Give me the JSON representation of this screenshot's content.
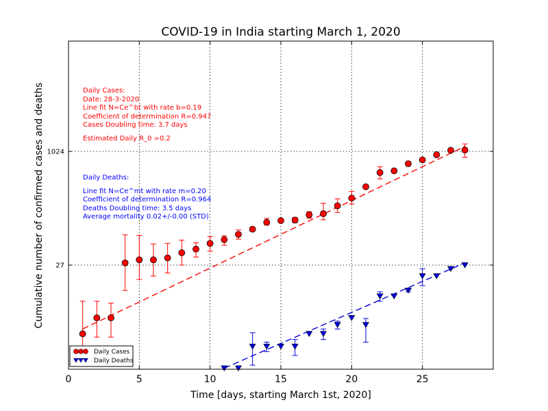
{
  "chart_data": {
    "type": "scatter",
    "title": "COVID-19 in India starting March 1, 2020",
    "xlabel": "Time [days, starting March 1st, 2020]",
    "ylabel": "Cumulative number of confirmed cases and deaths",
    "xlim": [
      0,
      30
    ],
    "x_ticks": [
      "0",
      "5",
      "10",
      "15",
      "20",
      "25"
    ],
    "y_scale": "log",
    "y_ticks": [
      "27",
      "1024"
    ],
    "grid": true,
    "legend_position": "bottom-left",
    "series": [
      {
        "name": "Daily Cases",
        "color": "#ff0000",
        "marker": "circle",
        "x": [
          1,
          2,
          3,
          4,
          5,
          6,
          7,
          8,
          9,
          10,
          11,
          12,
          13,
          14,
          15,
          16,
          17,
          18,
          19,
          20,
          21,
          22,
          23,
          24,
          25,
          26,
          27,
          28
        ],
        "y": [
          3,
          5,
          5,
          29,
          32,
          32,
          34,
          40,
          45,
          54,
          61,
          72,
          85,
          106,
          112,
          114,
          135,
          140,
          180,
          230,
          330,
          520,
          550,
          690,
          780,
          920,
          1060,
          1070
        ],
        "err_low": [
          1.6,
          2.3,
          2.3,
          17,
          15,
          13,
          13,
          13,
          10,
          12,
          10,
          10,
          5,
          9,
          5,
          10,
          14,
          25,
          35,
          40,
          5,
          95,
          30,
          20,
          20,
          10,
          10,
          220
        ],
        "err_high": [
          5.5,
          3.5,
          3,
          42,
          38,
          21,
          20,
          20,
          10,
          13,
          8,
          11,
          3,
          14,
          5,
          10,
          14,
          55,
          45,
          55,
          5,
          105,
          30,
          20,
          20,
          10,
          10,
          230
        ]
      },
      {
        "name": "Daily Deaths",
        "color": "#0000dd",
        "marker": "triangle-down",
        "x": [
          11,
          12,
          13,
          14,
          15,
          16,
          17,
          18,
          19,
          20,
          21,
          22,
          23,
          24,
          25,
          26,
          27,
          28
        ],
        "y": [
          1,
          1,
          2,
          2,
          2,
          2,
          3,
          3,
          4,
          5,
          4,
          10,
          10,
          12,
          19,
          19,
          24,
          27
        ],
        "err_low": [
          0,
          0,
          0.9,
          0.3,
          0,
          0.5,
          0,
          0.5,
          0.5,
          0,
          1.7,
          1.5,
          0,
          0.5,
          5,
          0,
          0,
          0
        ],
        "err_high": [
          0,
          0,
          1.1,
          0.3,
          0,
          0.5,
          0,
          0.5,
          0.5,
          0,
          0.9,
          1.5,
          0,
          0.5,
          5,
          0,
          0,
          0
        ]
      }
    ],
    "fit_lines": [
      {
        "series": "Daily Cases",
        "color": "#ff0000",
        "x": [
          1,
          28
        ],
        "y": [
          3.5,
          1200
        ]
      },
      {
        "series": "Daily Deaths",
        "color": "#0000dd",
        "x": [
          11,
          28
        ],
        "y": [
          1,
          29
        ]
      }
    ],
    "annotations": {
      "cases": {
        "heading": "Daily Cases:",
        "date": "Date: 28-3-2020",
        "fit": "Line fit N=Ce^bt with rate b=0.19",
        "r2": "Coefficient of determination R=0.947",
        "doubling": "Cases Doubling time: 3.7 days",
        "r0": "Estimated Daily R_0 =0.2"
      },
      "deaths": {
        "heading": "Daily Deaths:",
        "fit": "Line fit N=Ce^mt with rate m=0.20",
        "r2": "Coefficient of determination R=0.964",
        "doubling": "Deaths Doubling time: 3.5 days",
        "mortality": "Average mortality 0.02+/-0.00 (STD)"
      }
    },
    "legend": [
      "Daily Cases",
      "Daily Deaths"
    ]
  }
}
